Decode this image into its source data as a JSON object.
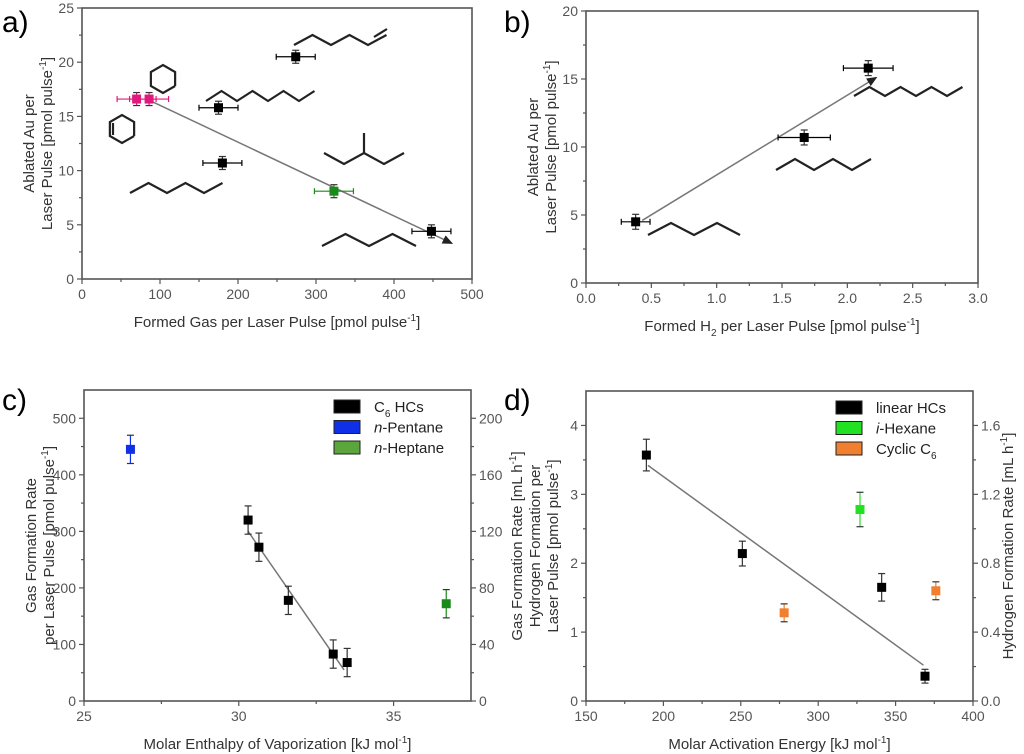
{
  "chart_data": [
    {
      "id": "a",
      "panel_label": "a)",
      "type": "scatter",
      "xlabel": "Formed Gas per Laser Pulse [pmol pulse",
      "xlabel_sup": "-1",
      "xlabel_end": "]",
      "ylabel_lines": [
        "Ablated Au per",
        "Laser Pulse [pmol pulse"
      ],
      "ylabel_sup": "-1",
      "ylabel_end": "]",
      "xlim": [
        0,
        500
      ],
      "ylim": [
        0,
        25
      ],
      "xticks": [
        0,
        100,
        200,
        300,
        400,
        500
      ],
      "yticks": [
        0,
        5,
        10,
        15,
        20,
        25
      ],
      "points": [
        {
          "x": 70,
          "y": 16.6,
          "xerr": 25,
          "yerr": 0.6,
          "color": "#e0197f"
        },
        {
          "x": 86,
          "y": 16.6,
          "xerr": 25,
          "yerr": 0.6,
          "color": "#e0197f"
        },
        {
          "x": 175,
          "y": 15.8,
          "xerr": 25,
          "yerr": 0.6,
          "color": "#000000"
        },
        {
          "x": 274,
          "y": 20.5,
          "xerr": 25,
          "yerr": 0.6,
          "color": "#000000"
        },
        {
          "x": 180,
          "y": 10.7,
          "xerr": 25,
          "yerr": 0.6,
          "color": "#000000"
        },
        {
          "x": 323,
          "y": 8.1,
          "xerr": 25,
          "yerr": 0.6,
          "color": "#1a8a1a"
        },
        {
          "x": 448,
          "y": 4.4,
          "xerr": 25,
          "yerr": 0.6,
          "color": "#000000"
        }
      ],
      "trend": {
        "x1": 86,
        "y1": 16.5,
        "x2": 474,
        "y2": 3.3,
        "arrow": true
      },
      "molecules": [
        {
          "name": "1-hexene",
          "type": "chain-ene"
        },
        {
          "name": "cyclohexane",
          "type": "ring"
        },
        {
          "name": "cyclohexene",
          "type": "ring-ene"
        },
        {
          "name": "n-octane",
          "type": "chain"
        },
        {
          "name": "n-hexane",
          "type": "chain"
        },
        {
          "name": "i-hexane",
          "type": "branched"
        },
        {
          "name": "n-pentane",
          "type": "chain"
        }
      ]
    },
    {
      "id": "b",
      "panel_label": "b)",
      "type": "scatter",
      "xlabel": "Formed H",
      "xlabel_sub": "2",
      "xlabel_rest": " per Laser Pulse [pmol pulse",
      "xlabel_sup": "-1",
      "xlabel_end": "]",
      "ylabel_lines": [
        "Ablated Au per",
        "Laser Pulse [pmol pulse"
      ],
      "ylabel_sup": "-1",
      "ylabel_end": "]",
      "xlim": [
        0,
        3.0
      ],
      "ylim": [
        0,
        20
      ],
      "xticks": [
        "0.0",
        "0.5",
        "1.0",
        "1.5",
        "2.0",
        "2.5",
        "3.0"
      ],
      "yticks": [
        0,
        5,
        10,
        15,
        20
      ],
      "points": [
        {
          "x": 0.38,
          "y": 4.5,
          "xerr": 0.11,
          "yerr": 0.55,
          "color": "#000000"
        },
        {
          "x": 1.67,
          "y": 10.7,
          "xerr": 0.2,
          "yerr": 0.55,
          "color": "#000000"
        },
        {
          "x": 2.16,
          "y": 15.8,
          "xerr": 0.19,
          "yerr": 0.55,
          "color": "#000000"
        }
      ],
      "trend": {
        "x1": 0.43,
        "y1": 4.6,
        "x2": 2.22,
        "y2": 15.1,
        "arrow": true
      },
      "molecules": [
        {
          "name": "n-octane",
          "type": "chain"
        },
        {
          "name": "n-hexane",
          "type": "chain"
        },
        {
          "name": "n-pentane",
          "type": "chain"
        }
      ]
    },
    {
      "id": "c",
      "panel_label": "c)",
      "type": "scatter",
      "xlabel": "Molar Enthalpy of Vaporization [kJ mol",
      "xlabel_sup": "-1",
      "xlabel_end": "]",
      "ylabel_lines": [
        "Gas Formation Rate",
        "per Laser Pulse [pmol pulse"
      ],
      "ylabel_sup": "-1",
      "ylabel_end": "]",
      "y2label": "Gas Formation Rate [mL h",
      "y2label_sup": "-1",
      "y2label_end": "]",
      "xlim": [
        25,
        37.5
      ],
      "ylim": [
        0,
        550
      ],
      "y2lim": [
        0,
        220
      ],
      "xticks": [
        25,
        30,
        35
      ],
      "yticks": [
        0,
        100,
        200,
        300,
        400,
        500
      ],
      "y2ticks": [
        0,
        40,
        80,
        120,
        160,
        200
      ],
      "legend": [
        {
          "label": "C",
          "sub": "6",
          "rest": " HCs",
          "italic_prefix": "",
          "color": "#000000"
        },
        {
          "label": "",
          "sub": "",
          "rest": "-Pentane",
          "italic_prefix": "n",
          "color": "#1030e8"
        },
        {
          "label": "",
          "sub": "",
          "rest": "-Heptane",
          "italic_prefix": "n",
          "color": "#5aa63c"
        }
      ],
      "points": [
        {
          "x": 26.5,
          "y": 445,
          "yerr": 25,
          "color": "#1030e8"
        },
        {
          "x": 30.3,
          "y": 320,
          "yerr": 25,
          "color": "#000000"
        },
        {
          "x": 30.65,
          "y": 272,
          "yerr": 25,
          "color": "#000000"
        },
        {
          "x": 31.6,
          "y": 178,
          "yerr": 25,
          "color": "#000000"
        },
        {
          "x": 33.05,
          "y": 83,
          "yerr": 25,
          "color": "#000000"
        },
        {
          "x": 33.5,
          "y": 68,
          "yerr": 25,
          "color": "#000000"
        },
        {
          "x": 36.7,
          "y": 172,
          "yerr": 25,
          "color": "#1a8a1a"
        }
      ],
      "trend": {
        "x1": 30.3,
        "y1": 300,
        "x2": 33.4,
        "y2": 55,
        "arrow": false
      }
    },
    {
      "id": "d",
      "panel_label": "d)",
      "type": "scatter",
      "xlabel": "Molar Activation Energy [kJ mol",
      "xlabel_sup": "-1",
      "xlabel_end": "]",
      "ylabel_lines": [
        "Hydrogen Formation per",
        "Laser Pulse [pmol pulse"
      ],
      "ylabel_sup": "-1",
      "ylabel_end": "]",
      "y2label": "Hydrogen Formation Rate [mL h",
      "y2label_sup": "-1",
      "y2label_end": "]",
      "xlim": [
        150,
        400
      ],
      "ylim": [
        0,
        4.5
      ],
      "y2lim": [
        0,
        1.8
      ],
      "xticks": [
        150,
        200,
        250,
        300,
        350,
        400
      ],
      "yticks": [
        0,
        1,
        2,
        3,
        4
      ],
      "y2ticks": [
        "0.0",
        "0.4",
        "0.8",
        "1.2",
        "1.6"
      ],
      "legend": [
        {
          "label": "linear HCs",
          "sub": "",
          "rest": "",
          "italic_prefix": "",
          "color": "#000000"
        },
        {
          "label": "",
          "sub": "",
          "rest": "-Hexane",
          "italic_prefix": "i",
          "color": "#22e022"
        },
        {
          "label": "Cyclic C",
          "sub": "6",
          "rest": "",
          "italic_prefix": "",
          "color": "#f07f30"
        }
      ],
      "points": [
        {
          "x": 189,
          "y": 3.57,
          "yerr": 0.23,
          "color": "#000000"
        },
        {
          "x": 251,
          "y": 2.14,
          "yerr": 0.18,
          "color": "#000000"
        },
        {
          "x": 341,
          "y": 1.65,
          "yerr": 0.2,
          "color": "#000000"
        },
        {
          "x": 369,
          "y": 0.36,
          "yerr": 0.1,
          "color": "#000000"
        },
        {
          "x": 327,
          "y": 2.78,
          "yerr": 0.25,
          "color": "#22e022"
        },
        {
          "x": 278,
          "y": 1.28,
          "yerr": 0.13,
          "color": "#f07f30"
        },
        {
          "x": 376,
          "y": 1.6,
          "yerr": 0.13,
          "color": "#f07f30"
        }
      ],
      "trend": {
        "x1": 190,
        "y1": 3.42,
        "x2": 368,
        "y2": 0.52,
        "arrow": false
      }
    }
  ]
}
